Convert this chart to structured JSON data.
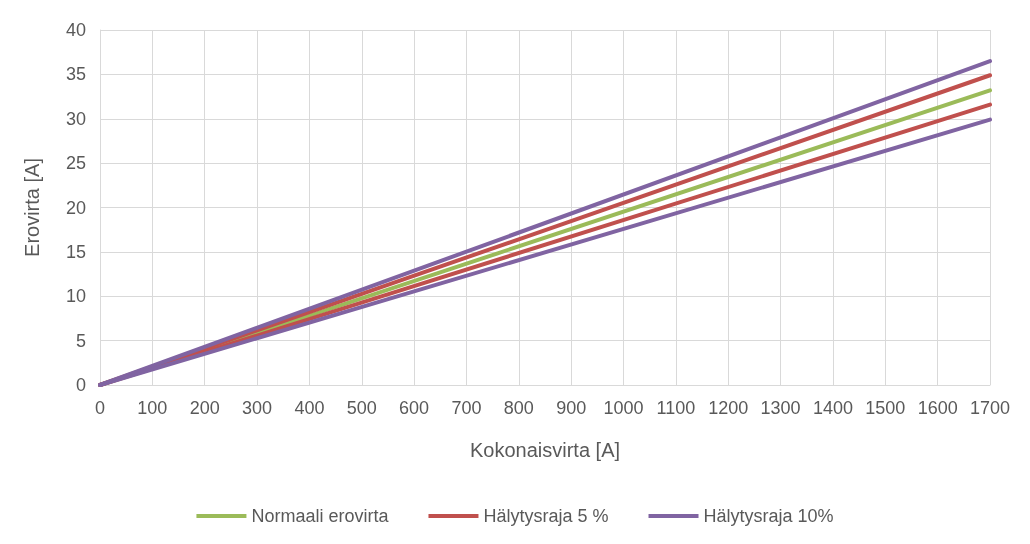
{
  "chart_data": {
    "type": "line",
    "xlabel": "Kokonaisvirta [A]",
    "ylabel": "Erovirta [A]",
    "x": [
      0,
      1700
    ],
    "series": [
      {
        "name": "Normaali erovirta",
        "color": "#9bbb59",
        "values": [
          0,
          33.2
        ]
      },
      {
        "name": "Hälytysraja 5 %",
        "color": "#c0504d",
        "values": [
          0,
          34.9
        ]
      },
      {
        "color": "#c0504d",
        "values": [
          0,
          31.6
        ]
      },
      {
        "name": "Hälytysraja 10%",
        "color": "#8064a2",
        "values": [
          0,
          36.5
        ]
      },
      {
        "color": "#8064a2",
        "values": [
          0,
          29.9
        ]
      }
    ],
    "xlim": [
      0,
      1700
    ],
    "xticks": [
      0,
      100,
      200,
      300,
      400,
      500,
      600,
      700,
      800,
      900,
      1000,
      1100,
      1200,
      1300,
      1400,
      1500,
      1600,
      1700
    ],
    "ylim": [
      0,
      40
    ],
    "yticks": [
      0,
      5,
      10,
      15,
      20,
      25,
      30,
      35,
      40
    ],
    "grid": true,
    "legend": "bottom",
    "marker": "none",
    "line_style": "solid"
  }
}
